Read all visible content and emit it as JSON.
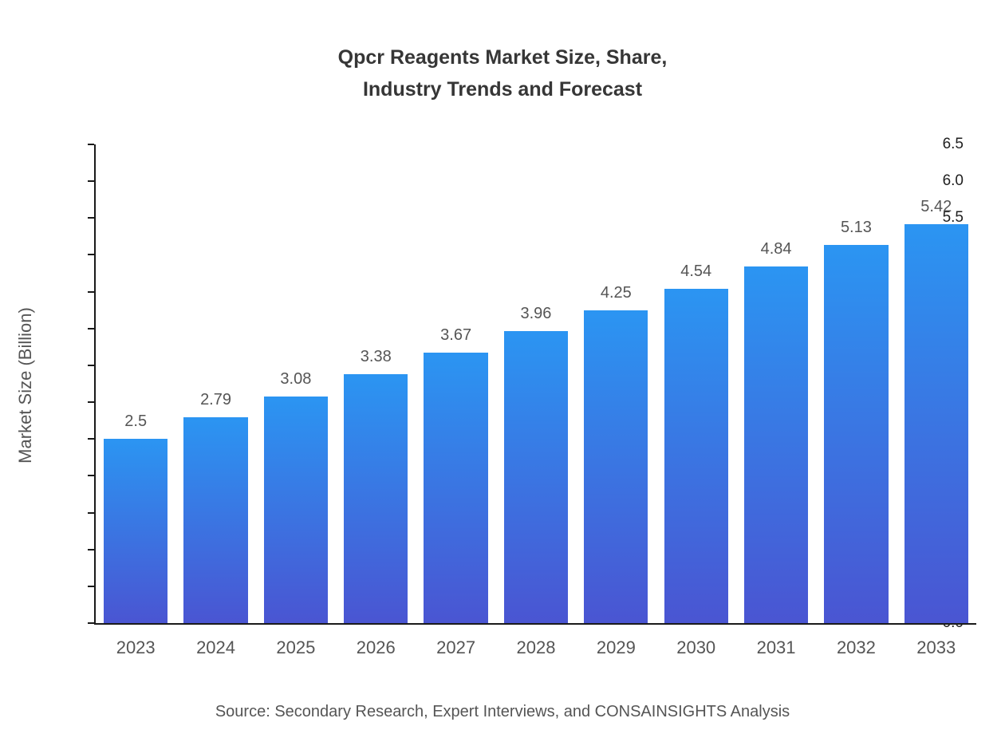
{
  "title": {
    "line1": "Qpcr Reagents Market Size, Share,",
    "line2": "Industry Trends and Forecast"
  },
  "source": "Source: Secondary Research, Expert Interviews, and CONSAINSIGHTS Analysis",
  "chart_data": {
    "type": "bar",
    "title": "Qpcr Reagents Market Size, Share, Industry Trends and Forecast",
    "categories": [
      "2023",
      "2024",
      "2025",
      "2026",
      "2027",
      "2028",
      "2029",
      "2030",
      "2031",
      "2032",
      "2033"
    ],
    "values": [
      2.5,
      2.79,
      3.08,
      3.38,
      3.67,
      3.96,
      4.25,
      4.54,
      4.84,
      5.13,
      5.42
    ],
    "value_labels": [
      "2.5",
      "2.79",
      "3.08",
      "3.38",
      "3.67",
      "3.96",
      "4.25",
      "4.54",
      "4.84",
      "5.13",
      "5.42"
    ],
    "xlabel": "",
    "ylabel": "Market Size (Billion)",
    "ylim": [
      0,
      6.5
    ],
    "ytick_step": 0.5,
    "grid": false,
    "legend": "none",
    "colors": {
      "bar_gradient_top": "#2b95f2",
      "bar_gradient_bottom": "#4a55d2",
      "axis": "#1a1a1a",
      "tick_label": "#1f1f1f",
      "category_label": "#555555",
      "value_label": "#555555",
      "title": "#363636",
      "source": "#555555"
    }
  }
}
